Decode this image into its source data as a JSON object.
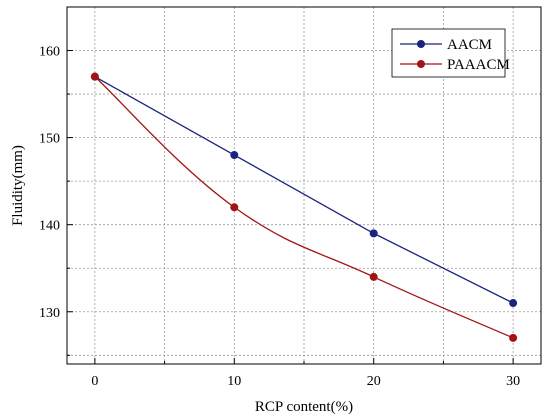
{
  "chart_data": {
    "type": "line",
    "xlabel": "RCP content(%)",
    "ylabel": "Fluidity(mm)",
    "x": [
      0,
      10,
      20,
      30
    ],
    "xticks": [
      "0",
      "10",
      "20",
      "30"
    ],
    "yticks": [
      "130",
      "140",
      "150",
      "160"
    ],
    "xlim": [
      -2,
      32
    ],
    "ylim": [
      124,
      165
    ],
    "grid": true,
    "legend_position": "top-right",
    "series": [
      {
        "name": "AACM",
        "color": "#1a237e",
        "values": [
          157,
          148,
          139,
          131
        ],
        "smooth": false
      },
      {
        "name": "PAAACM",
        "color": "#a31515",
        "values": [
          157,
          142,
          134,
          127
        ],
        "smooth": true
      }
    ]
  }
}
